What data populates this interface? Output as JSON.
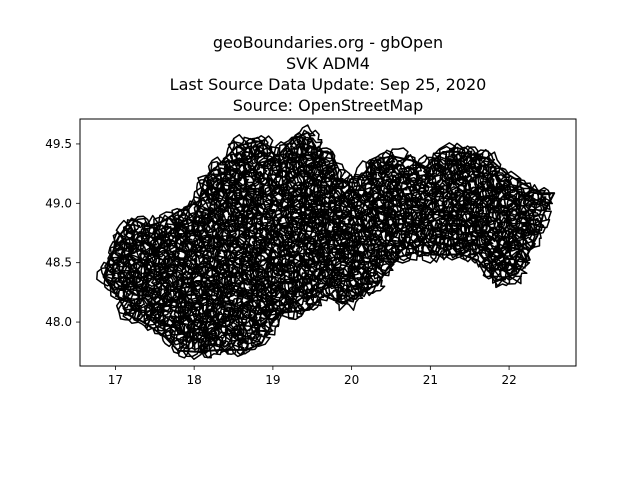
{
  "title_lines": [
    "geoBoundaries.org - gbOpen",
    "SVK ADM4",
    "Last Source Data Update: Sep 25, 2020",
    "Source: OpenStreetMap"
  ],
  "map_data": {
    "type": "choropleth-outline",
    "xlim": [
      16.55,
      22.85
    ],
    "ylim": [
      47.63,
      49.71
    ],
    "x_ticks": [
      17,
      18,
      19,
      20,
      21,
      22
    ],
    "y_ticks": [
      48.0,
      48.5,
      49.0,
      49.5
    ],
    "outline_color": "#000000",
    "fill_color": "#ffffff",
    "grid": false,
    "legend": "none"
  }
}
